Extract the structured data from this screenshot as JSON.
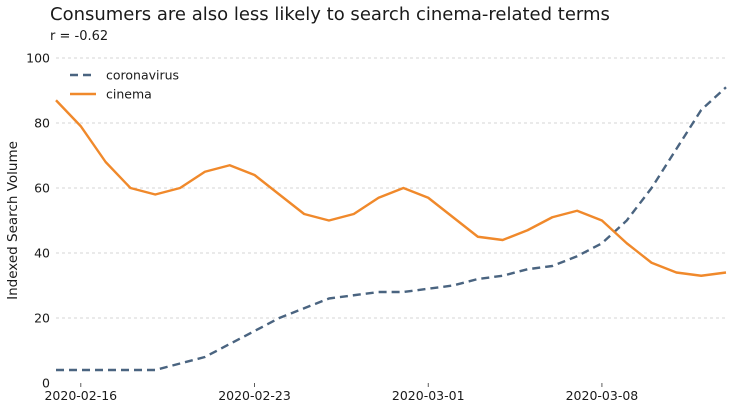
{
  "chart_data": {
    "type": "line",
    "title": "Consumers are also less likely to search cinema-related terms",
    "subtitle": "r = -0.62",
    "xlabel": "",
    "ylabel": "Indexed Search Volume",
    "ylim": [
      0,
      100
    ],
    "yticks": [
      0,
      20,
      40,
      60,
      80,
      100
    ],
    "xticks": [
      "2020-02-16",
      "2020-02-23",
      "2020-03-01",
      "2020-03-08"
    ],
    "xlim": [
      "2020-02-15",
      "2020-03-13"
    ],
    "grid": "horizontal-dashed",
    "legend_position": "top-left",
    "x": [
      "2020-02-15",
      "2020-02-16",
      "2020-02-17",
      "2020-02-18",
      "2020-02-19",
      "2020-02-20",
      "2020-02-21",
      "2020-02-22",
      "2020-02-23",
      "2020-02-24",
      "2020-02-25",
      "2020-02-26",
      "2020-02-27",
      "2020-02-28",
      "2020-02-29",
      "2020-03-01",
      "2020-03-02",
      "2020-03-03",
      "2020-03-04",
      "2020-03-05",
      "2020-03-06",
      "2020-03-07",
      "2020-03-08",
      "2020-03-09",
      "2020-03-10",
      "2020-03-11",
      "2020-03-12",
      "2020-03-13"
    ],
    "series": [
      {
        "name": "coronavirus",
        "color": "#4a6480",
        "style": "dashed",
        "values": [
          4,
          4,
          4,
          4,
          4,
          6,
          8,
          12,
          16,
          20,
          23,
          26,
          27,
          28,
          28,
          29,
          30,
          32,
          33,
          35,
          36,
          39,
          43,
          50,
          60,
          72,
          84,
          91
        ]
      },
      {
        "name": "cinema",
        "color": "#f0892b",
        "style": "solid",
        "values": [
          87,
          79,
          68,
          60,
          58,
          60,
          65,
          67,
          64,
          58,
          52,
          50,
          52,
          57,
          60,
          57,
          51,
          45,
          44,
          47,
          51,
          53,
          50,
          43,
          37,
          34,
          33,
          34
        ]
      }
    ]
  }
}
